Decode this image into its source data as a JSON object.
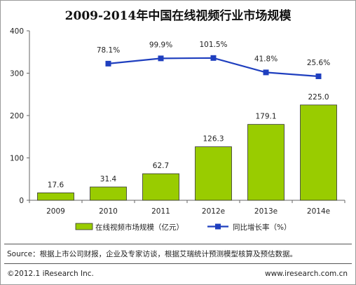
{
  "chart_data": {
    "type": "bar",
    "title": "2009-2014年中国在线视频行业市场规模",
    "categories": [
      "2009",
      "2010",
      "2011",
      "2012e",
      "2013e",
      "2014e"
    ],
    "ylim": [
      0,
      400
    ],
    "yticks": [
      0,
      100,
      200,
      300,
      400
    ],
    "series": [
      {
        "name": "在线视频市场规模（亿元）",
        "type": "bar",
        "color": "#99cc00",
        "values": [
          17.6,
          31.4,
          62.7,
          126.3,
          179.1,
          225.0
        ],
        "labels": [
          "17.6",
          "31.4",
          "62.7",
          "126.3",
          "179.1",
          "225.0"
        ]
      },
      {
        "name": "同比增长率（%）",
        "type": "line",
        "color": "#1f3fbf",
        "values": [
          null,
          78.1,
          99.9,
          101.5,
          41.8,
          25.6
        ],
        "labels": [
          null,
          "78.1%",
          "99.9%",
          "101.5%",
          "41.8%",
          "25.6%"
        ]
      }
    ],
    "legend": "bottom"
  },
  "footer": {
    "source": "Source：根据上市公司财报，企业及专家访谈，根据艾瑞统计预测模型核算及预估数据。",
    "copyright": "©2012.1 iResearch Inc.",
    "site": "www.iresearch.com.cn"
  }
}
